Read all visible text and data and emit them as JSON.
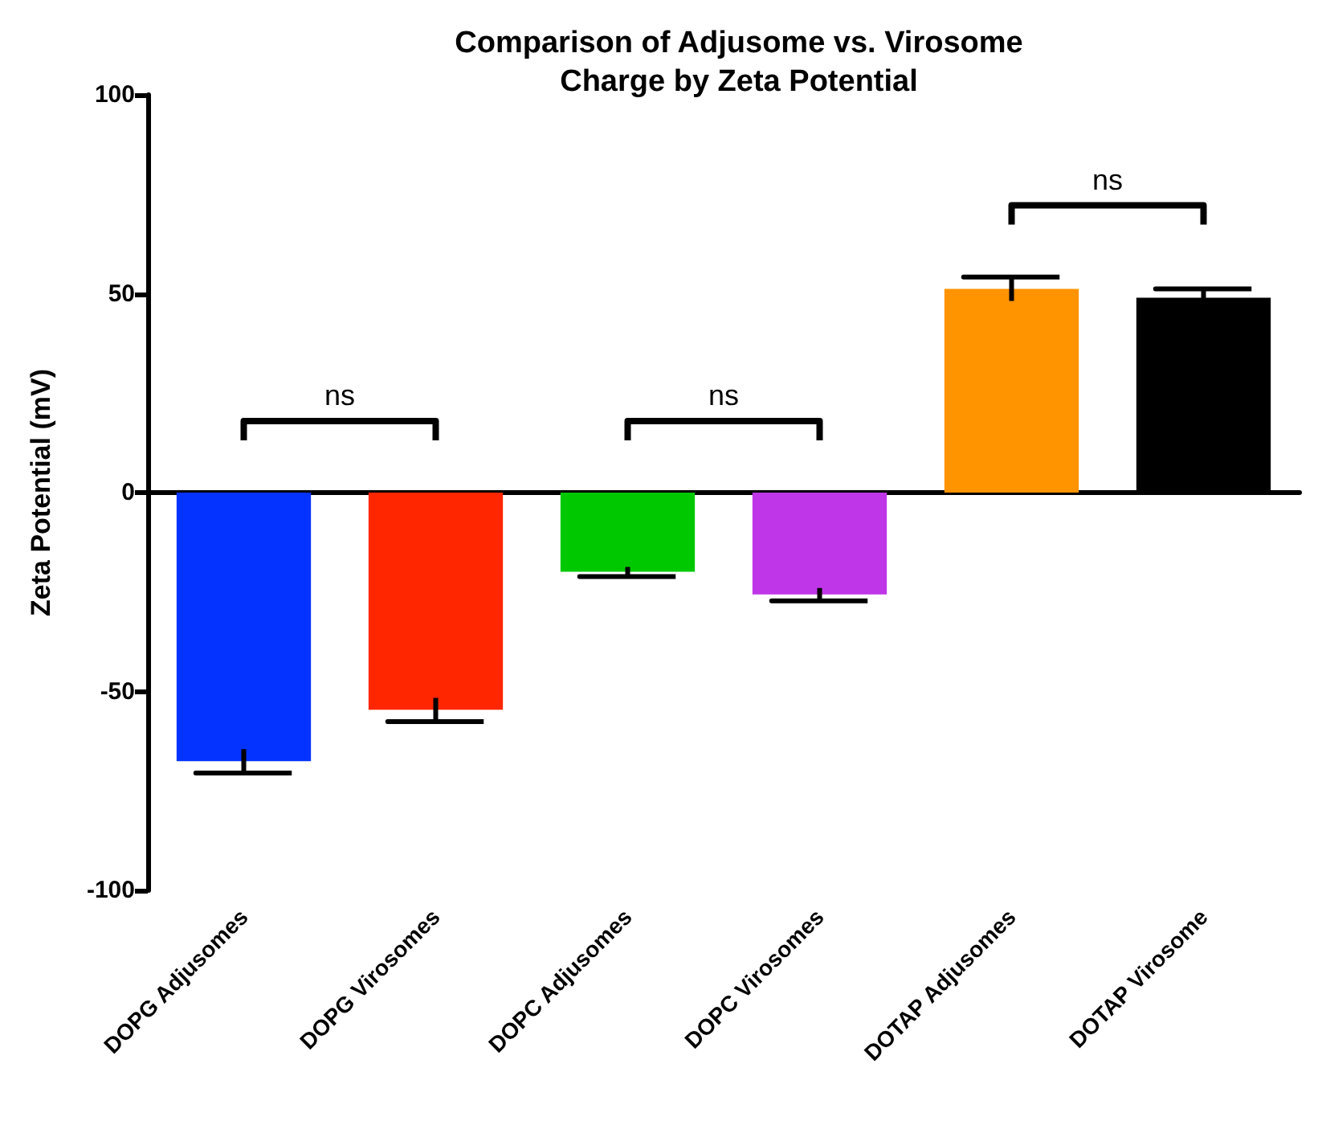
{
  "chart_data": {
    "type": "bar",
    "title": "Comparison of Adjusome vs. Virosome\nCharge by Zeta Potential",
    "ylabel": "Zeta Potential (mV)",
    "categories": [
      "DOPG Adjusomes",
      "DOPG Virosomes",
      "DOPC Adjusomes",
      "DOPC Virosomes",
      "DOTAP Adjusomes",
      "DOTAP Virosome"
    ],
    "values": [
      -67.5,
      -54.6,
      -19.9,
      -25.6,
      51.2,
      49
    ],
    "errors": [
      3,
      3,
      1.2,
      1.6,
      3,
      2.2
    ],
    "colors": [
      "#0433ff",
      "#ff2600",
      "#00c800",
      "#bf36e8",
      "#ff9300",
      "#000000"
    ],
    "ylim": [
      -100,
      100
    ],
    "yticks": [
      -100,
      -50,
      0,
      50,
      100
    ],
    "annotations": [
      "ns",
      "ns",
      "ns"
    ]
  }
}
